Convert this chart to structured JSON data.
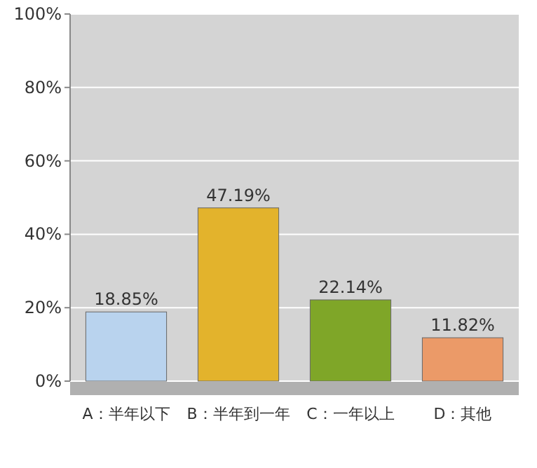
{
  "chart_data": {
    "type": "bar",
    "categories": [
      "A：半年以下",
      "B：半年到一年",
      "C：一年以上",
      "D：其他"
    ],
    "values": [
      18.85,
      47.19,
      22.14,
      11.82
    ],
    "colors": [
      "#b9d3ee",
      "#e3b32c",
      "#7fa628",
      "#eb9a68"
    ],
    "ylim": [
      0,
      100
    ],
    "yticks": [
      {
        "value": 0,
        "label": "0%"
      },
      {
        "value": 20,
        "label": "20%"
      },
      {
        "value": 40,
        "label": "40%"
      },
      {
        "value": 60,
        "label": "60%"
      },
      {
        "value": 80,
        "label": "80%"
      },
      {
        "value": 100,
        "label": "100%"
      }
    ],
    "value_labels": [
      "18.85%",
      "47.19%",
      "22.14%",
      "11.82%"
    ],
    "grid": "y"
  }
}
